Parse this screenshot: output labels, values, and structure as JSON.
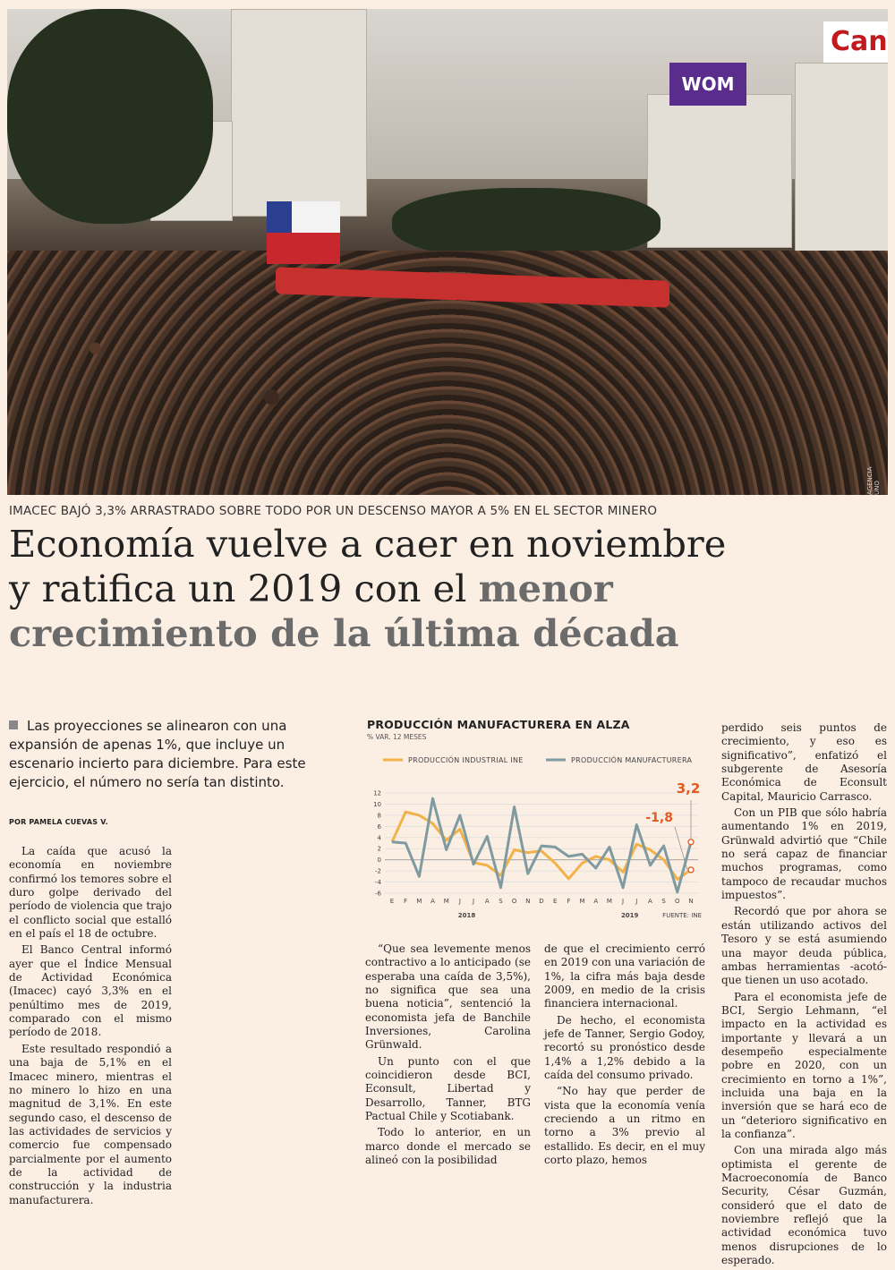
{
  "photo": {
    "credit": "AGENCIA UNO",
    "sign_wom": "WOM",
    "sign_canon": "Can"
  },
  "kicker": "IMACEC BAJÓ 3,3% ARRASTRADO SOBRE TODO POR UN DESCENSO MAYOR A 5% EN EL SECTOR MINERO",
  "headline": {
    "line1": "Economía vuelve a caer en noviembre",
    "line2a": "y ratifica un 2019 con el ",
    "line2b": "menor",
    "line3": "crecimiento de la última década"
  },
  "lead": "Las proyecciones se alinearon con una expansión de apenas 1%, que incluye un escenario incierto para diciembre. Para este ejercicio, el número no sería tan distinto.",
  "byline": "POR PAMELA CUEVAS V.",
  "col1": [
    "La caída que acusó la economía en noviembre confirmó los temores sobre el duro golpe derivado del período de violencia que trajo el conflicto social que estalló en el país el 18 de octubre.",
    "El Banco Central informó ayer que el Índice Mensual de Actividad Económica (Imacec) cayó 3,3% en el penúltimo mes de 2019, comparado con el mismo período de 2018.",
    "Este resultado respondió a una baja de 5,1% en el Imacec minero, mientras el no minero lo hizo en una magnitud de 3,1%. En este segundo caso, el descenso de las actividades de servicios y comercio fue compensado parcialmente por el aumento de la actividad de construcción y la industria manufacturera."
  ],
  "col2": [
    "“Que sea levemente menos contractivo a lo anticipado (se esperaba una caída de 3,5%), no significa que sea una buena noticia”, sentenció la economista jefa de Banchile Inversiones, Carolina Grünwald.",
    "Un punto con el que coincidieron desde BCI, Econsult, Libertad y Desarrollo, Tanner, BTG Pactual Chile y Scotiabank.",
    "Todo lo anterior, en un marco donde el mercado se alineó con la posibilidad"
  ],
  "col3": [
    "de que el crecimiento cerró en 2019 con una variación de 1%, la cifra más baja desde 2009, en medio de la crisis financiera internacional.",
    "De hecho, el economista jefe de Tanner, Sergio Godoy, recortó su pronóstico desde 1,4% a 1,2% debido a la caída del consumo privado.",
    "“No hay que perder de vista que la economía venía creciendo a un ritmo en torno a 3% previo al estallido. Es decir, en el muy corto plazo, hemos"
  ],
  "col4": [
    "perdido seis puntos de crecimiento, y eso es significativo”, enfatizó el subgerente de Asesoría Económica de Econsult Capital, Mauricio Carrasco.",
    "Con un PIB que sólo habría aumentando 1% en 2019, Grünwald advirtió que “Chile no será capaz de financiar muchos programas, como tampoco de recaudar muchos impuestos”.",
    "Recordó que por ahora se están utilizando activos del Tesoro y se está asumiendo una mayor deuda pública, ambas herramientas -acotó- que tienen un uso acotado.",
    "Para el economista jefe de BCI, Sergio Lehmann, “el impacto en la actividad es importante y llevará a un desempeño especialmente pobre en 2020, con un crecimiento en torno a 1%”, incluida una baja en la inversión que se hará eco de un “deterioro significativo en la confianza”.",
    "Con una mirada algo más optimista el gerente de Macroeconomía de Banco Security, César Guzmán, consideró que el dato de noviembre reflejó que la actividad económica tuvo menos disrupciones de lo esperado."
  ],
  "chart_data": {
    "type": "line",
    "title": "PRODUCCIÓN MANUFACTURERA EN ALZA",
    "subtitle": "% VAR. 12 MESES",
    "source": "FUENTE: INE",
    "x": [
      "E",
      "F",
      "M",
      "A",
      "M",
      "J",
      "J",
      "A",
      "S",
      "O",
      "N",
      "D",
      "E",
      "F",
      "M",
      "A",
      "M",
      "J",
      "J",
      "A",
      "S",
      "O",
      "N"
    ],
    "year_labels": [
      "2018",
      "2019"
    ],
    "ylim": [
      -6,
      12
    ],
    "yticks": [
      12,
      10,
      8,
      6,
      4,
      2,
      0,
      -2,
      -4,
      -6
    ],
    "series": [
      {
        "name": "PRODUCCIÓN INDUSTRIAL INE",
        "color": "#f2b24a",
        "values": [
          3.2,
          8.6,
          8.0,
          6.5,
          3.5,
          5.5,
          -0.5,
          -1.0,
          -2.8,
          1.8,
          1.3,
          1.6,
          -0.6,
          -3.4,
          -0.6,
          0.6,
          0.0,
          -2.2,
          2.8,
          1.8,
          0.0,
          -3.5,
          -1.8
        ]
      },
      {
        "name": "PRODUCCIÓN MANUFACTURERA",
        "color": "#7f9aa0",
        "values": [
          3.2,
          3.0,
          -3.0,
          11.0,
          1.8,
          8.0,
          -0.8,
          4.2,
          -5.0,
          9.5,
          -2.5,
          2.5,
          2.3,
          0.6,
          1.0,
          -1.5,
          2.3,
          -5.0,
          6.3,
          -1.0,
          2.5,
          -5.8,
          3.2
        ]
      }
    ],
    "annotations": [
      "3,2",
      "-1,8"
    ],
    "grid": true
  }
}
